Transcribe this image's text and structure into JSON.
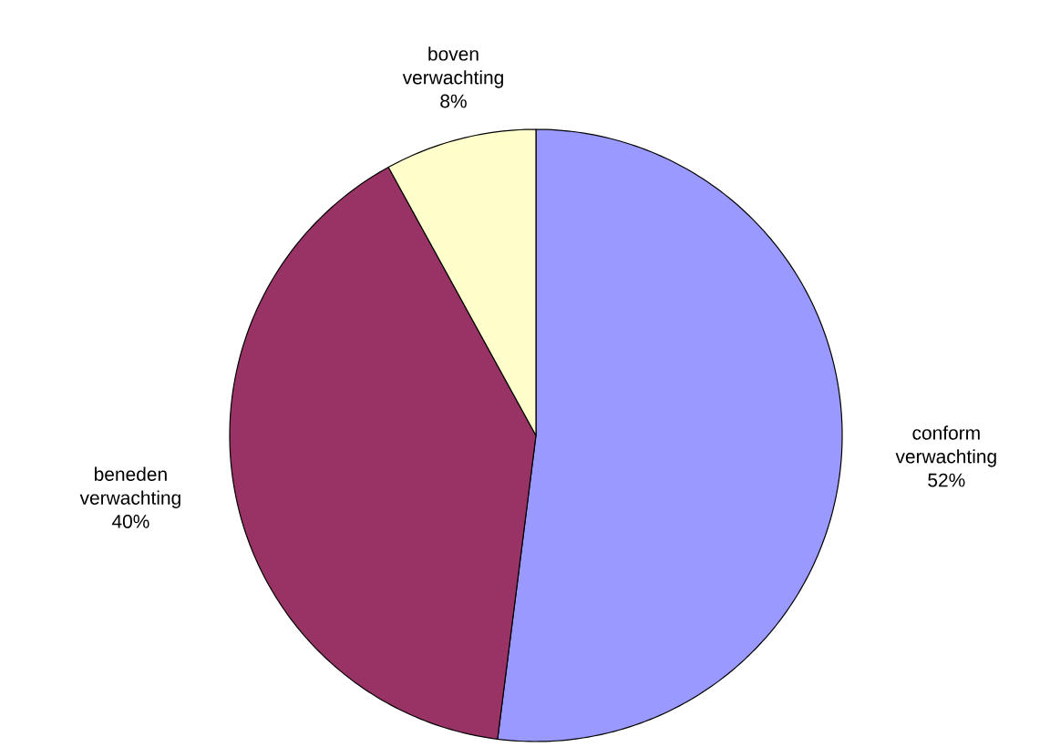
{
  "chart_data": {
    "type": "pie",
    "categories": [
      "conform verwachting",
      "beneden verwachting",
      "boven verwachting"
    ],
    "values": [
      52,
      40,
      8
    ],
    "colors": [
      "#9999ff",
      "#993366",
      "#ffffcc"
    ],
    "value_labels": [
      "52%",
      "40%",
      "8%"
    ]
  }
}
